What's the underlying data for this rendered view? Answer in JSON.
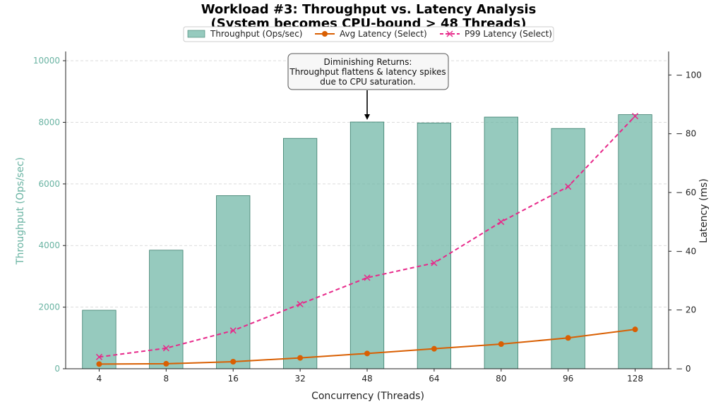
{
  "chart_data": {
    "type": "bar",
    "title_line1": "Workload #3: Throughput vs. Latency Analysis",
    "title_line2": "(System becomes CPU-bound > 48 Threads)",
    "xlabel": "Concurrency (Threads)",
    "ylabel_left": "Throughput (Ops/sec)",
    "ylabel_right": "Latency (ms)",
    "categories": [
      "4",
      "8",
      "16",
      "32",
      "48",
      "64",
      "80",
      "96",
      "128"
    ],
    "ylim_left": [
      0,
      10300
    ],
    "yticks_left": [
      0,
      2000,
      4000,
      6000,
      8000,
      10000
    ],
    "ylim_right": [
      0,
      108
    ],
    "yticks_right": [
      0,
      20,
      40,
      60,
      80,
      100
    ],
    "grid": true,
    "legend_position": "top-center",
    "series": [
      {
        "name": "Throughput (Ops/sec)",
        "kind": "bar",
        "axis": "left",
        "color": "#69b3a2",
        "values": [
          1900,
          3850,
          5620,
          7480,
          8010,
          7980,
          8170,
          7800,
          8250
        ]
      },
      {
        "name": "Avg Latency (Select)",
        "kind": "line",
        "axis": "right",
        "color": "#d95f02",
        "marker": "circle",
        "values": [
          1.6,
          1.7,
          2.4,
          3.7,
          5.2,
          6.8,
          8.4,
          10.5,
          13.4
        ]
      },
      {
        "name": "P99 Latency (Select)",
        "kind": "line",
        "axis": "right",
        "color": "#e7298a",
        "marker": "x",
        "dashed": true,
        "values": [
          4,
          7,
          13,
          22,
          31,
          36,
          50,
          62,
          86
        ]
      }
    ],
    "annotation": {
      "lines": [
        "Diminishing Returns:",
        "Throughput flattens & latency spikes",
        "due to CPU saturation."
      ],
      "points_to_category": "48",
      "points_to_value": 8010
    }
  }
}
